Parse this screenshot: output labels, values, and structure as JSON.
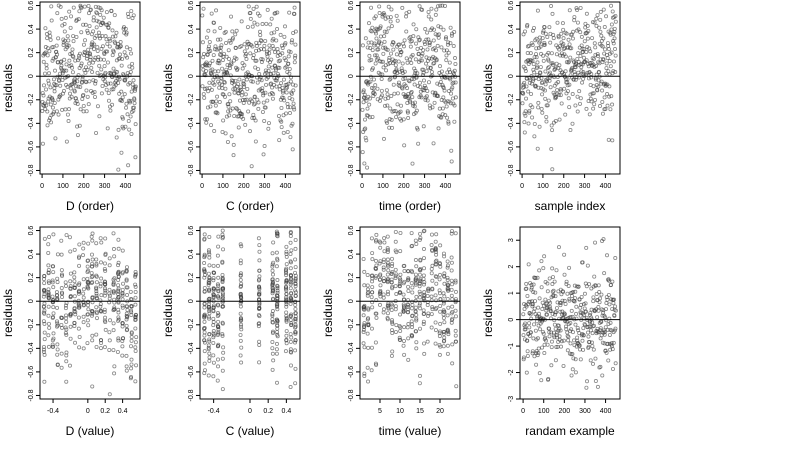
{
  "colors": {
    "points": "#3a3a3a",
    "axes": "#000000",
    "background": "#ffffff"
  },
  "chart_data": [
    {
      "type": "scatter",
      "xlabel": "D (order)",
      "ylabel": "residuals",
      "xlim": [
        -10,
        470
      ],
      "ylim": [
        -0.83,
        0.63
      ],
      "xticks": [
        0,
        100,
        200,
        300,
        400
      ],
      "yticks": [
        -0.8,
        -0.6,
        -0.4,
        -0.2,
        0.0,
        0.2,
        0.4,
        0.6
      ],
      "hline": 0,
      "gen": {
        "mode": "index",
        "n": 450,
        "seed": 11,
        "lo": -0.8,
        "hi": 0.6,
        "sd": 0.26,
        "trend": [
          [
            0,
            0.0
          ],
          [
            150,
            0.02
          ],
          [
            280,
            0.25
          ],
          [
            350,
            0.05
          ],
          [
            450,
            -0.15
          ]
        ]
      }
    },
    {
      "type": "scatter",
      "xlabel": "C (order)",
      "ylabel": "residuals",
      "xlim": [
        -10,
        470
      ],
      "ylim": [
        -0.83,
        0.63
      ],
      "xticks": [
        0,
        100,
        200,
        300,
        400
      ],
      "yticks": [
        -0.8,
        -0.6,
        -0.4,
        -0.2,
        0.0,
        0.2,
        0.4,
        0.6
      ],
      "hline": 0,
      "gen": {
        "mode": "index",
        "n": 450,
        "seed": 23,
        "lo": -0.8,
        "hi": 0.6,
        "sd": 0.26,
        "trend": [
          [
            0,
            0.0
          ],
          [
            450,
            0.0
          ]
        ]
      }
    },
    {
      "type": "scatter",
      "xlabel": "time (order)",
      "ylabel": "residuals",
      "xlim": [
        -10,
        470
      ],
      "ylim": [
        -0.83,
        0.63
      ],
      "xticks": [
        0,
        100,
        200,
        300,
        400
      ],
      "yticks": [
        -0.8,
        -0.6,
        -0.4,
        -0.2,
        0.0,
        0.2,
        0.4,
        0.6
      ],
      "hline": 0,
      "gen": {
        "mode": "index",
        "n": 450,
        "seed": 37,
        "lo": -0.8,
        "hi": 0.6,
        "sd": 0.27,
        "trend": [
          [
            0,
            -0.25
          ],
          [
            70,
            0.2
          ],
          [
            200,
            -0.05
          ],
          [
            330,
            0.12
          ],
          [
            450,
            -0.1
          ]
        ]
      }
    },
    {
      "type": "scatter",
      "xlabel": "sample index",
      "ylabel": "residuals",
      "xlim": [
        -10,
        470
      ],
      "ylim": [
        -0.83,
        0.63
      ],
      "xticks": [
        0,
        100,
        200,
        300,
        400
      ],
      "yticks": [
        -0.8,
        -0.6,
        -0.4,
        -0.2,
        0.0,
        0.2,
        0.4,
        0.6
      ],
      "hline": 0,
      "gen": {
        "mode": "index",
        "n": 450,
        "seed": 41,
        "lo": -0.8,
        "hi": 0.6,
        "sd": 0.25,
        "trend": [
          [
            0,
            0.0
          ],
          [
            150,
            0.05
          ],
          [
            350,
            0.15
          ],
          [
            420,
            0.05
          ],
          [
            450,
            0.3
          ]
        ]
      }
    },
    {
      "type": "scatter",
      "xlabel": "D (value)",
      "ylabel": "residuals",
      "xlim": [
        -0.55,
        0.6
      ],
      "ylim": [
        -0.83,
        0.63
      ],
      "xticks": [
        -0.4,
        0.0,
        0.2,
        0.4
      ],
      "yticks": [
        -0.8,
        -0.6,
        -0.4,
        -0.2,
        0.0,
        0.2,
        0.4,
        0.6
      ],
      "hline": 0,
      "gen": {
        "mode": "columns",
        "n": 450,
        "seed": 53,
        "lo": -0.8,
        "hi": 0.6,
        "sd": 0.25,
        "xs": [
          -0.5,
          -0.45,
          -0.4,
          -0.35,
          -0.3,
          -0.25,
          -0.2,
          -0.15,
          -0.1,
          -0.05,
          0.0,
          0.05,
          0.1,
          0.15,
          0.2,
          0.25,
          0.3,
          0.35,
          0.4,
          0.45,
          0.5,
          0.55
        ],
        "jitter": 0.006,
        "trend": [
          [
            -0.5,
            -0.05
          ],
          [
            0.1,
            0.15
          ],
          [
            0.55,
            -0.2
          ]
        ]
      }
    },
    {
      "type": "scatter",
      "xlabel": "C (value)",
      "ylabel": "residuals",
      "xlim": [
        -0.55,
        0.55
      ],
      "ylim": [
        -0.83,
        0.63
      ],
      "xticks": [
        -0.4,
        0.0,
        0.2,
        0.4
      ],
      "yticks": [
        -0.8,
        -0.6,
        -0.4,
        -0.2,
        0.0,
        0.2,
        0.4,
        0.6
      ],
      "hline": 0,
      "gen": {
        "mode": "columns",
        "n": 450,
        "seed": 67,
        "lo": -0.8,
        "hi": 0.6,
        "sd": 0.27,
        "xs": [
          -0.5,
          -0.45,
          -0.4,
          -0.35,
          -0.3,
          -0.1,
          0.1,
          0.25,
          0.3,
          0.4,
          0.45,
          0.5
        ],
        "jitter": 0.005,
        "trend": [
          [
            -0.5,
            0.0
          ],
          [
            0.5,
            0.0
          ]
        ]
      }
    },
    {
      "type": "scatter",
      "xlabel": "time (value)",
      "ylabel": "residuals",
      "xlim": [
        0,
        25
      ],
      "ylim": [
        -0.83,
        0.63
      ],
      "xticks": [
        5,
        10,
        15,
        20
      ],
      "yticks": [
        -0.8,
        -0.6,
        -0.4,
        -0.2,
        0.0,
        0.2,
        0.4,
        0.6
      ],
      "hline": 0,
      "gen": {
        "mode": "columns",
        "n": 450,
        "seed": 79,
        "lo": -0.8,
        "hi": 0.6,
        "sd": 0.26,
        "xs": [
          1,
          2,
          3,
          4,
          5,
          6,
          7,
          8,
          9,
          10,
          11,
          12,
          13,
          14,
          15,
          16,
          17,
          18,
          19,
          20,
          21,
          22,
          23,
          24
        ],
        "jitter": 0.12,
        "trend": [
          [
            1,
            -0.25
          ],
          [
            5,
            0.2
          ],
          [
            12,
            -0.05
          ],
          [
            18,
            0.12
          ],
          [
            24,
            -0.1
          ]
        ]
      }
    },
    {
      "type": "scatter",
      "xlabel": "randam example",
      "ylabel": "residuals",
      "xlim": [
        -15,
        470
      ],
      "ylim": [
        -3.0,
        3.5
      ],
      "xticks": [
        0,
        100,
        200,
        300,
        400
      ],
      "yticks": [
        -3,
        -2,
        -1,
        0,
        1,
        2,
        3
      ],
      "hline": 0,
      "gen": {
        "mode": "index",
        "n": 450,
        "seed": 97,
        "lo": -3.0,
        "hi": 3.2,
        "sd": 1.0,
        "trend": [
          [
            0,
            0.0
          ],
          [
            450,
            0.0
          ]
        ]
      }
    }
  ]
}
